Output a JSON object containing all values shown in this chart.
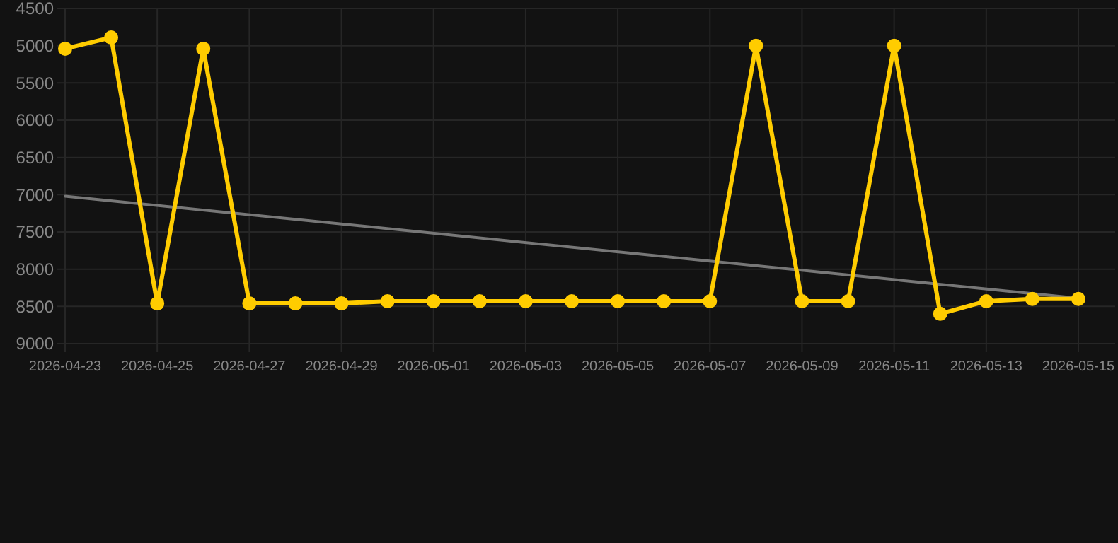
{
  "chart_data": {
    "type": "line",
    "x": [
      "2026-04-23",
      "2026-04-24",
      "2026-04-25",
      "2026-04-26",
      "2026-04-27",
      "2026-04-28",
      "2026-04-29",
      "2026-04-30",
      "2026-05-01",
      "2026-05-02",
      "2026-05-03",
      "2026-05-04",
      "2026-05-05",
      "2026-05-06",
      "2026-05-07",
      "2026-05-08",
      "2026-05-09",
      "2026-05-10",
      "2026-05-11",
      "2026-05-12",
      "2026-05-13",
      "2026-05-14",
      "2026-05-15"
    ],
    "series": [
      {
        "color": "#ffcc00",
        "marker": "circle",
        "values": [
          5040,
          4890,
          8460,
          5040,
          8460,
          8460,
          8460,
          8430,
          8430,
          8430,
          8430,
          8430,
          8430,
          8430,
          8430,
          5000,
          8430,
          8430,
          5000,
          8600,
          8430,
          8400,
          8400
        ]
      },
      {
        "type": "line",
        "color": "#777777",
        "marker": "none",
        "x": [
          "2026-04-23",
          "2026-05-15"
        ],
        "values": [
          7020,
          8390
        ]
      }
    ],
    "xlim": [
      "2026-04-23",
      "2026-05-15"
    ],
    "ylim": [
      9000,
      4500
    ],
    "xticks": [
      "2026-04-23",
      "2026-04-25",
      "2026-04-27",
      "2026-04-29",
      "2026-05-01",
      "2026-05-03",
      "2026-05-05",
      "2026-05-07",
      "2026-05-09",
      "2026-05-11",
      "2026-05-13",
      "2026-05-15"
    ],
    "yticks": [
      4500,
      5000,
      5500,
      6000,
      6500,
      7000,
      7500,
      8000,
      8500,
      9000
    ],
    "grid": true
  }
}
